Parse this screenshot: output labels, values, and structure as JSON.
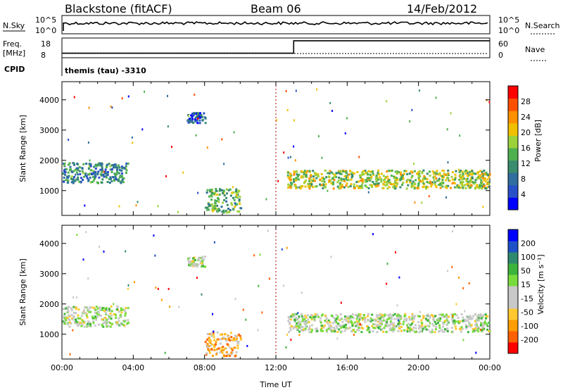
{
  "header": {
    "station": "Blackstone (fitACF)",
    "beam": "Beam 06",
    "date": "14/Feb/2012"
  },
  "status_panel": {
    "nsky_label": "N.Sky",
    "nsearch_label": "N.Search",
    "noise_ticks": [
      "10^5",
      "10^0"
    ],
    "freq_label": "Freq.",
    "freq_unit": "[MHz]",
    "freq_ticks": [
      "18",
      "8"
    ],
    "nave_label": "Nave",
    "nave_ticks": [
      "60",
      "0"
    ],
    "cpid_label": "CPID",
    "cpid_text": "themis (tau) -3310",
    "freq_data_MHz": {
      "x": [
        0,
        13,
        13,
        24
      ],
      "y": [
        10.3,
        10.3,
        16.6,
        16.6
      ]
    }
  },
  "chart_data": [
    {
      "type": "heatmap",
      "name": "power",
      "xlabel": "",
      "ylabel": "Slant Range [km]",
      "xlim": [
        0,
        24
      ],
      "ylim": [
        180,
        4600
      ],
      "yticks": [
        1000,
        2000,
        3000,
        4000
      ],
      "xticks": [
        "00:00",
        "04:00",
        "08:00",
        "12:00",
        "16:00",
        "20:00",
        "00:00"
      ],
      "colorbar": {
        "label": "Power [dB]",
        "ticks": [
          "28",
          "24",
          "20",
          "16",
          "12",
          "8",
          "4"
        ],
        "colors": [
          "#0000ff",
          "#2850c8",
          "#2f6e9e",
          "#3a8c6e",
          "#4fb04f",
          "#9cd23c",
          "#f0c000",
          "#ff9000",
          "#ff5000",
          "#ff0000"
        ]
      },
      "scatter_regions": [
        {
          "t0": 0.0,
          "t1": 3.7,
          "r0": 1280,
          "r1": 1950,
          "level": 0.3
        },
        {
          "t0": 12.6,
          "t1": 24.0,
          "r0": 1100,
          "r1": 1700,
          "level": 0.55
        },
        {
          "t0": 8.0,
          "t1": 10.0,
          "r0": 300,
          "r1": 1100,
          "level": 0.45
        },
        {
          "t0": 7.0,
          "t1": 8.0,
          "r0": 3250,
          "r1": 3600,
          "level": 0.15
        }
      ]
    },
    {
      "type": "heatmap",
      "name": "velocity",
      "xlabel": "Time UT",
      "ylabel": "Slant Range [km]",
      "xlim": [
        0,
        24
      ],
      "ylim": [
        180,
        4600
      ],
      "yticks": [
        1000,
        2000,
        3000,
        4000
      ],
      "xticks": [
        "00:00",
        "04:00",
        "08:00",
        "12:00",
        "16:00",
        "20:00",
        "00:00"
      ],
      "colorbar": {
        "label": "Velocity [m s⁻¹]",
        "ticks": [
          "200",
          "100",
          "50",
          "15",
          "-15",
          "-50",
          "-100",
          "-200"
        ],
        "colors": [
          "#ff0000",
          "#ff6000",
          "#ff9c00",
          "#ffc830",
          "#c8c8c8",
          "#c8c8c8",
          "#78dc3c",
          "#3cb43c",
          "#2e8a6e",
          "#1e50c8",
          "#0000ff"
        ]
      },
      "scatter_regions": [
        {
          "t0": 0.0,
          "t1": 3.7,
          "r0": 1280,
          "r1": 1950,
          "level": 0.5
        },
        {
          "t0": 12.6,
          "t1": 24.0,
          "r0": 1100,
          "r1": 1700,
          "level": 0.5
        },
        {
          "t0": 8.0,
          "t1": 10.0,
          "r0": 300,
          "r1": 1100,
          "level": 0.3
        },
        {
          "t0": 7.0,
          "t1": 8.0,
          "r0": 3250,
          "r1": 3600,
          "level": 0.5
        }
      ]
    }
  ],
  "colors": {
    "axis": "#000000",
    "marker_line": "#aa0000"
  }
}
